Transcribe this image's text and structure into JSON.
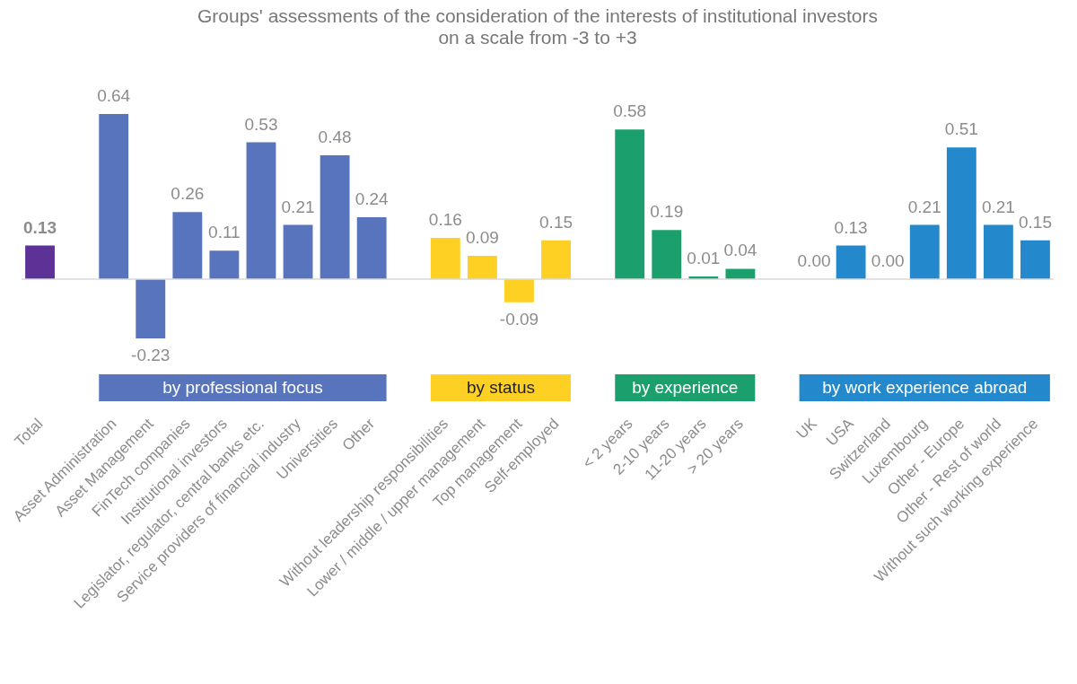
{
  "chart_data": {
    "type": "bar",
    "title": "Groups' assessments of the consideration of the interests of institutional investors",
    "subtitle": "on a scale from -3 to +3",
    "categories": [
      "Total",
      null,
      "Asset Administration",
      "Asset Management",
      "FinTech companies",
      "Institutional investors",
      "Legislator, regulator, central banks etc.",
      "Service providers of financial industry",
      "Universities",
      "Other",
      null,
      "Without leadership responsibilities",
      "Lower / middle / upper management",
      "Top management",
      "Self-employed",
      null,
      "< 2 years",
      "2-10 years",
      "11-20 years",
      "> 20 years",
      null,
      "UK",
      "USA",
      "Switzerland",
      "Luxembourg",
      "Other - Europe",
      "Other - Rest of world",
      "Without such working experience"
    ],
    "values": [
      0.13,
      null,
      0.64,
      -0.23,
      0.26,
      0.11,
      0.53,
      0.21,
      0.48,
      0.24,
      null,
      0.16,
      0.09,
      -0.09,
      0.15,
      null,
      0.58,
      0.19,
      0.01,
      0.04,
      null,
      0.0,
      0.13,
      0.0,
      0.21,
      0.51,
      0.21,
      0.15
    ],
    "value_labels": [
      "0.13",
      null,
      "0.64",
      "-0.23",
      "0.26",
      "0.11",
      "0.53",
      "0.21",
      "0.48",
      "0.24",
      null,
      "0.16",
      "0.09",
      "-0.09",
      "0.15",
      null,
      "0.58",
      "0.19",
      "0.01",
      "0.04",
      null,
      "0.00",
      "0.13",
      "0.00",
      "0.21",
      "0.51",
      "0.21",
      "0.15"
    ],
    "colors": [
      "#5c3296",
      null,
      "#5874bd",
      "#5874bd",
      "#5874bd",
      "#5874bd",
      "#5874bd",
      "#5874bd",
      "#5874bd",
      "#5874bd",
      null,
      "#fdd023",
      "#fdd023",
      "#fdd023",
      "#fdd023",
      null,
      "#1ba06d",
      "#1ba06d",
      "#1ba06d",
      "#1ba06d",
      null,
      "#2389cc",
      "#2389cc",
      "#2389cc",
      "#2389cc",
      "#2389cc",
      "#2389cc",
      "#2389cc"
    ],
    "annotations": [
      "by professional focus",
      "by status",
      "by experience",
      "by work experience abroad"
    ],
    "ref_lines": [
      {
        "axis": "y",
        "value": 0,
        "color": "#d9d9d9"
      }
    ]
  }
}
